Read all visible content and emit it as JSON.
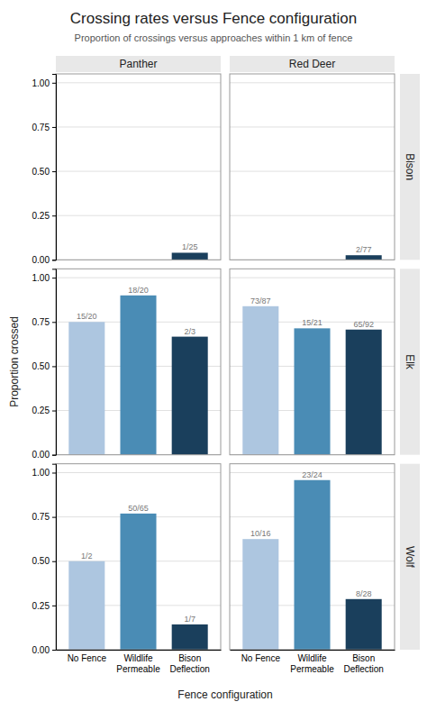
{
  "chart_data": {
    "type": "bar",
    "title": "Crossing rates versus Fence configuration",
    "subtitle": "Proportion of crossings versus approaches within 1 km of fence",
    "xlabel": "Fence configuration",
    "ylabel": "Proportion crossed",
    "categories": [
      "No Fence",
      "Wildlife\nPermeable",
      "Bison\nDeflection"
    ],
    "colors": [
      "#adc6e0",
      "#4a8cb5",
      "#1a3f5c"
    ],
    "facet_columns": [
      "Panther",
      "Red Deer"
    ],
    "facet_rows": [
      "Bison",
      "Elk",
      "Wolf"
    ],
    "panels": [
      [
        {
          "values": [
            null,
            null,
            0.04
          ],
          "value_labels": [
            null,
            null,
            "1/25"
          ]
        },
        {
          "values": [
            null,
            null,
            0.026
          ],
          "value_labels": [
            null,
            null,
            "2/77"
          ]
        }
      ],
      [
        {
          "values": [
            0.75,
            0.9,
            0.667
          ],
          "value_labels": [
            "15/20",
            "18/20",
            "2/3"
          ]
        },
        {
          "values": [
            0.839,
            0.714,
            0.707
          ],
          "value_labels": [
            "73/87",
            "15/21",
            "65/92"
          ]
        }
      ],
      [
        {
          "values": [
            0.5,
            0.769,
            0.143
          ],
          "value_labels": [
            "1/2",
            "50/65",
            "1/7"
          ]
        },
        {
          "values": [
            0.625,
            0.958,
            0.286
          ],
          "value_labels": [
            "10/16",
            "23/24",
            "8/28"
          ]
        }
      ]
    ],
    "ylim": [
      0,
      1.05
    ],
    "yticks": [
      {
        "value": 0.0,
        "label": "0.00"
      },
      {
        "value": 0.25,
        "label": "0.25"
      },
      {
        "value": 0.5,
        "label": "0.50"
      },
      {
        "value": 0.75,
        "label": "0.75"
      },
      {
        "value": 1.0,
        "label": "1.00"
      }
    ],
    "grid": true
  }
}
